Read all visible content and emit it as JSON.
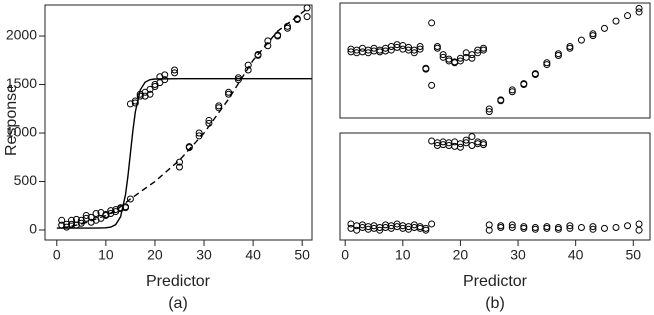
{
  "chart_data": [
    {
      "type": "scatter",
      "caption": "(a)",
      "x_label": "Predictor",
      "y_label": "Response",
      "xlim": [
        -2.4,
        52
      ],
      "ylim": [
        -103,
        2320
      ],
      "xticks": [
        0,
        10,
        20,
        30,
        40,
        50
      ],
      "yticks": [
        0,
        500,
        1000,
        1500,
        2000
      ],
      "points": {
        "color": "#000000",
        "x": [
          1,
          1,
          2,
          2,
          3,
          3,
          4,
          4,
          5,
          5,
          6,
          6,
          7,
          7,
          8,
          8,
          9,
          9,
          10,
          10,
          11,
          11,
          12,
          12,
          13,
          13,
          14,
          14,
          15,
          15,
          16,
          16,
          17,
          17,
          18,
          18,
          19,
          19,
          20,
          20,
          21,
          21,
          22,
          22,
          24,
          24,
          25,
          25,
          27,
          27,
          29,
          29,
          31,
          31,
          33,
          33,
          35,
          35,
          37,
          37,
          39,
          39,
          41,
          41,
          43,
          43,
          45,
          45,
          47,
          47,
          49,
          49,
          51,
          51
        ],
        "values": [
          50,
          100,
          30,
          60,
          100,
          60,
          110,
          50,
          70,
          100,
          150,
          120,
          80,
          130,
          100,
          170,
          120,
          180,
          150,
          160,
          170,
          200,
          210,
          190,
          220,
          230,
          230,
          240,
          1300,
          320,
          1310,
          1330,
          1380,
          1400,
          1420,
          1380,
          1450,
          1400,
          1480,
          1500,
          1580,
          1520,
          1550,
          1600,
          1650,
          1620,
          700,
          650,
          850,
          860,
          970,
          1000,
          1100,
          1130,
          1260,
          1280,
          1420,
          1400,
          1550,
          1570,
          1650,
          1700,
          1800,
          1810,
          1900,
          1950,
          2000,
          2010,
          2080,
          2100,
          2170,
          2180,
          2200,
          2290
        ]
      },
      "curves": [
        {
          "style": "solid",
          "color": "#000000",
          "x": [
            0,
            5,
            8,
            10,
            11,
            12,
            13,
            14,
            14.5,
            15,
            15.5,
            16,
            17,
            18,
            19,
            20,
            25,
            52
          ],
          "values": [
            20,
            20,
            20,
            23,
            30,
            55,
            137,
            363,
            557,
            790,
            1023,
            1217,
            1443,
            1525,
            1550,
            1557,
            1560,
            1560
          ]
        },
        {
          "style": "dashed",
          "color": "#000000",
          "x": [
            1,
            5,
            10,
            12,
            15,
            20,
            25,
            30,
            35,
            40,
            45,
            51
          ],
          "values": [
            20,
            60,
            150,
            200,
            320,
            500,
            720,
            1000,
            1350,
            1750,
            2050,
            2280
          ]
        }
      ]
    },
    {
      "type": "scatter-panels",
      "caption": "(b)",
      "x_label": "Predictor",
      "xlim": [
        -0.9,
        52.9
      ],
      "xticks": [
        0,
        10,
        20,
        30,
        40,
        50
      ],
      "panels": [
        {
          "ylim": [
            1130,
            2400
          ],
          "color": "#000000",
          "x": [
            1,
            1,
            2,
            2,
            3,
            3,
            4,
            4,
            5,
            5,
            6,
            6,
            7,
            7,
            8,
            8,
            9,
            9,
            10,
            10,
            11,
            11,
            12,
            12,
            13,
            13,
            14,
            14,
            15,
            15,
            16,
            16,
            17,
            17,
            18,
            18,
            19,
            19,
            20,
            20,
            21,
            21,
            22,
            22,
            23,
            23,
            24,
            24,
            25,
            25,
            27,
            27,
            29,
            29,
            31,
            31,
            33,
            33,
            35,
            35,
            37,
            37,
            39,
            39,
            41,
            43,
            43,
            45,
            47,
            49,
            51,
            51
          ],
          "values": [
            1890,
            1860,
            1850,
            1880,
            1900,
            1860,
            1880,
            1850,
            1900,
            1870,
            1880,
            1860,
            1900,
            1870,
            1880,
            1920,
            1940,
            1910,
            1930,
            1890,
            1910,
            1880,
            1880,
            1850,
            1920,
            1890,
            1680,
            1670,
            2180,
            1490,
            1920,
            1900,
            1830,
            1800,
            1780,
            1760,
            1750,
            1740,
            1760,
            1790,
            1850,
            1800,
            1830,
            1790,
            1880,
            1850,
            1900,
            1880,
            1200,
            1230,
            1330,
            1320,
            1440,
            1420,
            1510,
            1500,
            1620,
            1610,
            1720,
            1740,
            1820,
            1840,
            1900,
            1920,
            1990,
            2060,
            2040,
            2120,
            2200,
            2260,
            2300,
            2340
          ]
        },
        {
          "ylim": [
            -100,
            1100
          ],
          "color": "#000000",
          "x": [
            1,
            1,
            2,
            2,
            3,
            3,
            4,
            4,
            5,
            5,
            6,
            6,
            7,
            7,
            8,
            8,
            9,
            9,
            10,
            10,
            11,
            11,
            12,
            12,
            13,
            13,
            14,
            14,
            15,
            15,
            16,
            16,
            17,
            17,
            18,
            18,
            19,
            19,
            20,
            20,
            21,
            21,
            22,
            22,
            23,
            23,
            24,
            24,
            25,
            25,
            27,
            27,
            29,
            29,
            31,
            31,
            33,
            33,
            35,
            35,
            37,
            37,
            39,
            39,
            41,
            43,
            43,
            45,
            47,
            49,
            51,
            51
          ],
          "values": [
            80,
            30,
            60,
            10,
            70,
            40,
            50,
            20,
            60,
            30,
            40,
            10,
            70,
            40,
            30,
            60,
            80,
            50,
            60,
            30,
            50,
            20,
            40,
            70,
            30,
            50,
            30,
            10,
            80,
            1010,
            990,
            960,
            1000,
            970,
            990,
            960,
            1000,
            950,
            980,
            940,
            1020,
            990,
            1060,
            960,
            1000,
            980,
            990,
            970,
            10,
            70,
            40,
            60,
            40,
            70,
            30,
            50,
            40,
            20,
            50,
            30,
            40,
            20,
            30,
            60,
            40,
            20,
            50,
            30,
            40,
            60,
            10,
            80
          ]
        }
      ]
    }
  ]
}
